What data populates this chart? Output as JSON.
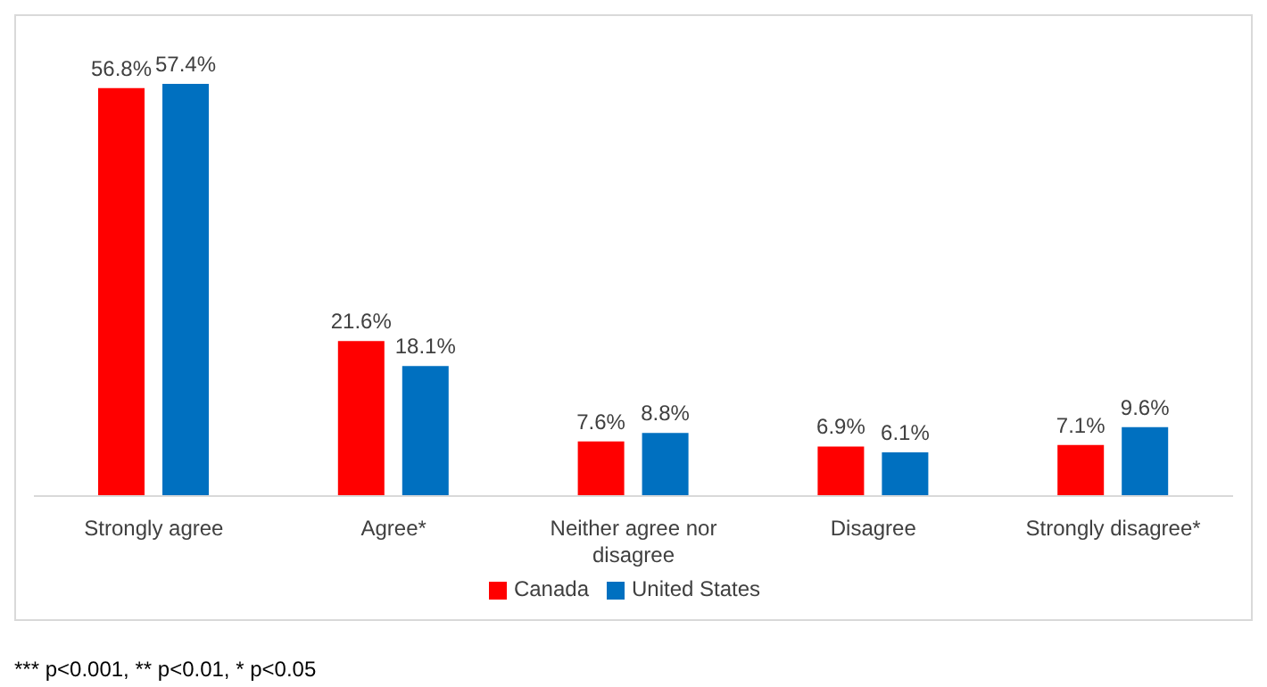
{
  "chart_data": {
    "type": "bar",
    "categories": [
      "Strongly agree",
      "Agree*",
      "Neither agree nor disagree",
      "Disagree",
      "Strongly disagree*"
    ],
    "series": [
      {
        "name": "Canada",
        "color": "#ff0000",
        "values": [
          56.8,
          21.6,
          7.6,
          6.9,
          7.1
        ],
        "value_labels": [
          "56.8%",
          "21.6%",
          "7.6%",
          "6.9%",
          "7.1%"
        ]
      },
      {
        "name": "United States",
        "color": "#0070c0",
        "values": [
          57.4,
          18.1,
          8.8,
          6.1,
          9.6
        ],
        "value_labels": [
          "57.4%",
          "18.1%",
          "8.8%",
          "6.1%",
          "9.6%"
        ]
      }
    ],
    "legend": "bottom",
    "grid": false,
    "annotations": [
      "*** p<0.001, ** p<0.01, * p<0.05"
    ]
  }
}
